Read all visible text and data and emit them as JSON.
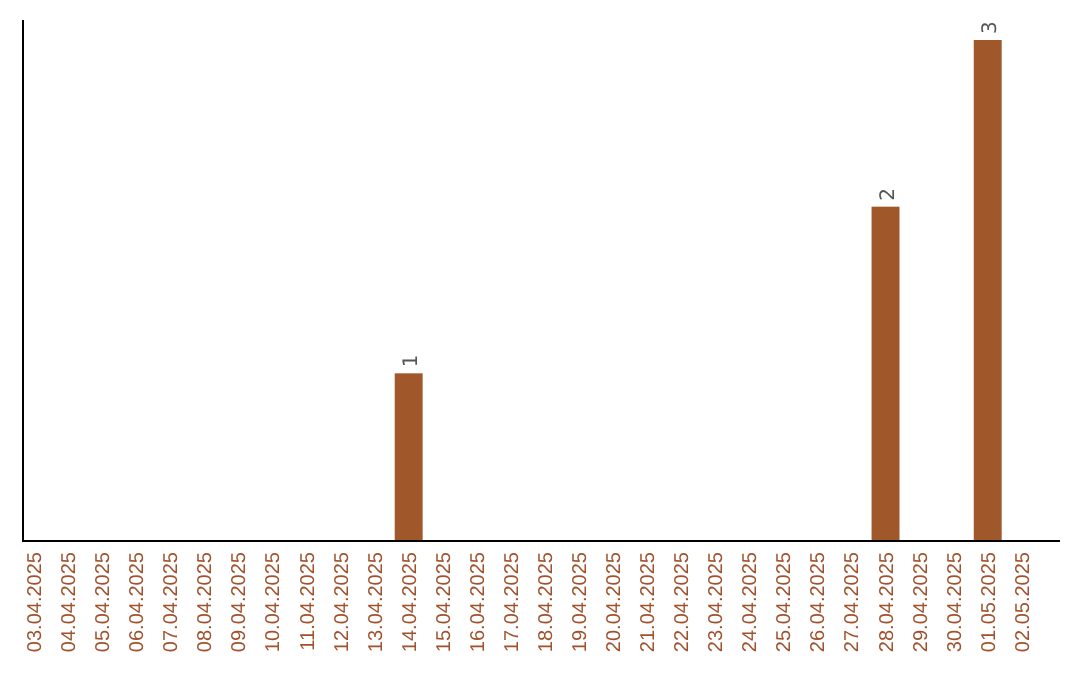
{
  "chart_data": {
    "type": "bar",
    "categories": [
      "03.04.2025",
      "04.04.2025",
      "05.04.2025",
      "06.04.2025",
      "07.04.2025",
      "08.04.2025",
      "09.04.2025",
      "10.04.2025",
      "11.04.2025",
      "12.04.2025",
      "13.04.2025",
      "14.04.2025",
      "15.04.2025",
      "16.04.2025",
      "17.04.2025",
      "18.04.2025",
      "19.04.2025",
      "20.04.2025",
      "21.04.2025",
      "22.04.2025",
      "23.04.2025",
      "24.04.2025",
      "25.04.2025",
      "26.04.2025",
      "27.04.2025",
      "28.04.2025",
      "29.04.2025",
      "30.04.2025",
      "01.05.2025",
      "02.05.2025"
    ],
    "values": [
      0,
      0,
      0,
      0,
      0,
      0,
      0,
      0,
      0,
      0,
      0,
      1,
      0,
      0,
      0,
      0,
      0,
      0,
      0,
      0,
      0,
      0,
      0,
      0,
      0,
      2,
      0,
      0,
      3,
      0
    ],
    "value_labels": [
      null,
      null,
      null,
      null,
      null,
      null,
      null,
      null,
      null,
      null,
      null,
      "1",
      null,
      null,
      null,
      null,
      null,
      null,
      null,
      null,
      null,
      null,
      null,
      null,
      null,
      "2",
      null,
      null,
      "3",
      null
    ],
    "color": "#a0582a",
    "relative": false
  }
}
